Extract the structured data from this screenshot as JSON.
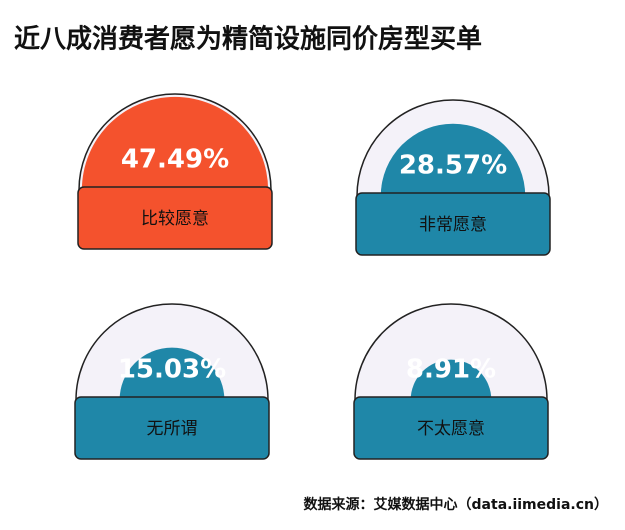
{
  "chart_data": {
    "type": "gauge",
    "title": "近八成消费者愿为精简设施同价房型买单",
    "categories": [
      "比较愿意",
      "非常愿意",
      "无所谓",
      "不太愿意"
    ],
    "values": [
      47.49,
      28.57,
      15.03,
      8.91
    ],
    "value_labels": [
      "47.49%",
      "28.57%",
      "15.03%",
      "8.91%"
    ],
    "colors": [
      "#f4522d",
      "#1f87a8",
      "#1f87a8",
      "#1f87a8"
    ],
    "source": "数据来源：艾媒数据中心（data.iimedia.cn）"
  }
}
